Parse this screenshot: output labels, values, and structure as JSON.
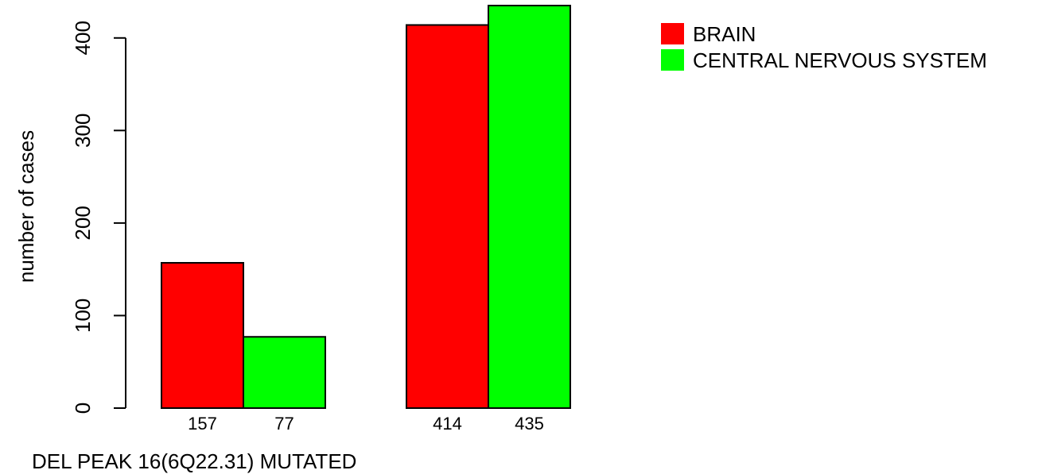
{
  "chart_data": {
    "type": "bar",
    "barmode": "grouped",
    "title": "",
    "xlabel": "DEL PEAK 16(6Q22.31) MUTATED",
    "ylabel": "number of cases",
    "ylim": [
      0,
      435
    ],
    "yticks": [
      0,
      100,
      200,
      300,
      400
    ],
    "categories": [
      "",
      ""
    ],
    "series": [
      {
        "name": "BRAIN",
        "color": "#ff0000",
        "values": [
          157,
          414
        ]
      },
      {
        "name": "CENTRAL NERVOUS SYSTEM",
        "color": "#00ff00",
        "values": [
          77,
          435
        ]
      }
    ],
    "bar_labels": [
      [
        "157",
        "77"
      ],
      [
        "414",
        "435"
      ]
    ],
    "legend": {
      "position": "top-right",
      "entries": [
        "BRAIN",
        "CENTRAL NERVOUS SYSTEM"
      ]
    },
    "grid": false
  }
}
